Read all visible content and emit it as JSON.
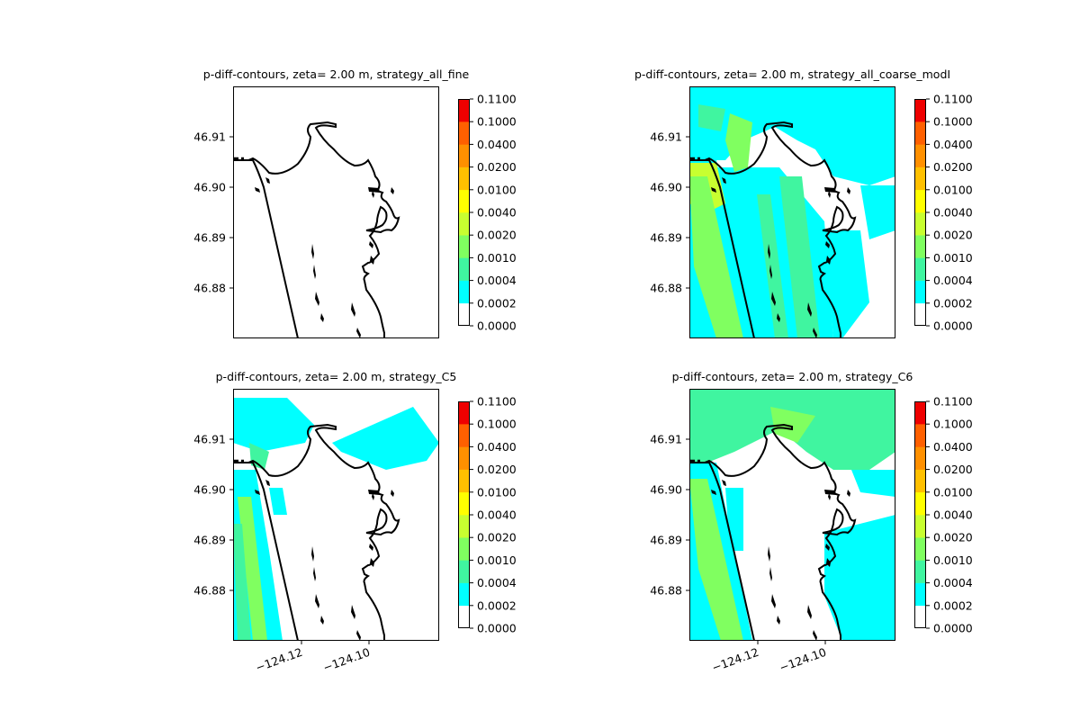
{
  "chart_data": {
    "type": "contour",
    "colorbar": {
      "tick_labels": [
        "0.0000",
        "0.0002",
        "0.0004",
        "0.0010",
        "0.0020",
        "0.0040",
        "0.0100",
        "0.0200",
        "0.0400",
        "0.1000",
        "0.1100"
      ],
      "colors": [
        "#ffffff",
        "#00ffff",
        "#40f5a0",
        "#80ff60",
        "#c8ff30",
        "#ffff00",
        "#ffc000",
        "#ff9000",
        "#ff6000",
        "#ff2000",
        "#ee0000"
      ]
    },
    "y_ticks": [
      "46.91",
      "46.90",
      "46.89",
      "46.88"
    ],
    "x_ticks": [
      "−124.12",
      "−124.10"
    ],
    "xlim": [
      -124.14,
      -124.08
    ],
    "ylim": [
      46.87,
      46.92
    ],
    "panels": [
      {
        "title": "p-diff-contours, zeta= 2.00 m, strategy_all_fine",
        "pattern": "none",
        "show_x_ticks": false
      },
      {
        "title": "p-diff-contours, zeta= 2.00 m, strategy_all_coarse_modI",
        "pattern": "coarse",
        "show_x_ticks": false
      },
      {
        "title": "p-diff-contours, zeta= 2.00 m, strategy_C5",
        "pattern": "c5",
        "show_x_ticks": true
      },
      {
        "title": "p-diff-contours, zeta= 2.00 m, strategy_C6",
        "pattern": "c6",
        "show_x_ticks": true
      }
    ]
  }
}
